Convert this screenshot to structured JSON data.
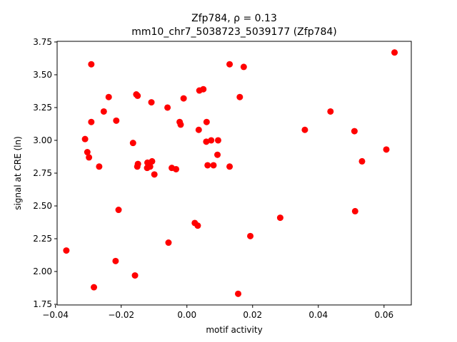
{
  "chart_data": {
    "type": "scatter",
    "title_line1": "Zfp784, ρ = 0.13",
    "title_line2": "mm10_chr7_5038723_5039177 (Zfp784)",
    "xlabel": "motif activity",
    "ylabel": "signal at CRE (ln)",
    "xlim": [
      -0.0395,
      0.0683
    ],
    "ylim": [
      1.745,
      3.755
    ],
    "xticks": [
      -0.04,
      -0.02,
      0.0,
      0.02,
      0.04,
      0.06
    ],
    "xtick_labels": [
      "−0.04",
      "−0.02",
      "0.00",
      "0.02",
      "0.04",
      "0.06"
    ],
    "yticks": [
      1.75,
      2.0,
      2.25,
      2.5,
      2.75,
      3.0,
      3.25,
      3.5,
      3.75
    ],
    "ytick_labels": [
      "1.75",
      "2.00",
      "2.25",
      "2.50",
      "2.75",
      "3.00",
      "3.25",
      "3.50",
      "3.75"
    ],
    "marker_color": "#ff0000",
    "grid": false,
    "points": [
      {
        "x": -0.0367,
        "y": 2.16
      },
      {
        "x": -0.031,
        "y": 3.01
      },
      {
        "x": -0.0303,
        "y": 2.91
      },
      {
        "x": -0.0298,
        "y": 2.87
      },
      {
        "x": -0.0291,
        "y": 3.58
      },
      {
        "x": -0.0291,
        "y": 3.14
      },
      {
        "x": -0.0283,
        "y": 1.88
      },
      {
        "x": -0.0267,
        "y": 2.8
      },
      {
        "x": -0.0253,
        "y": 3.22
      },
      {
        "x": -0.0238,
        "y": 3.33
      },
      {
        "x": -0.0217,
        "y": 2.08
      },
      {
        "x": -0.0215,
        "y": 3.15
      },
      {
        "x": -0.0208,
        "y": 2.47
      },
      {
        "x": -0.0164,
        "y": 2.98
      },
      {
        "x": -0.0158,
        "y": 1.97
      },
      {
        "x": -0.0154,
        "y": 3.35
      },
      {
        "x": -0.0151,
        "y": 2.8
      },
      {
        "x": -0.015,
        "y": 3.34
      },
      {
        "x": -0.0149,
        "y": 2.82
      },
      {
        "x": -0.0121,
        "y": 2.79
      },
      {
        "x": -0.012,
        "y": 2.83
      },
      {
        "x": -0.0117,
        "y": 2.82
      },
      {
        "x": -0.0112,
        "y": 2.8
      },
      {
        "x": -0.0108,
        "y": 3.29
      },
      {
        "x": -0.0106,
        "y": 2.84
      },
      {
        "x": -0.0099,
        "y": 2.74
      },
      {
        "x": -0.0059,
        "y": 3.25
      },
      {
        "x": -0.0056,
        "y": 2.22
      },
      {
        "x": -0.0046,
        "y": 2.79
      },
      {
        "x": -0.0033,
        "y": 2.78
      },
      {
        "x": -0.0022,
        "y": 3.14
      },
      {
        "x": -0.0019,
        "y": 3.12
      },
      {
        "x": -0.001,
        "y": 3.32
      },
      {
        "x": 0.0024,
        "y": 2.37
      },
      {
        "x": 0.0033,
        "y": 2.35
      },
      {
        "x": 0.0036,
        "y": 3.08
      },
      {
        "x": 0.0038,
        "y": 3.38
      },
      {
        "x": 0.005,
        "y": 3.39
      },
      {
        "x": 0.0059,
        "y": 2.99
      },
      {
        "x": 0.006,
        "y": 3.14
      },
      {
        "x": 0.0063,
        "y": 2.81
      },
      {
        "x": 0.0074,
        "y": 3.0
      },
      {
        "x": 0.0081,
        "y": 2.81
      },
      {
        "x": 0.0093,
        "y": 2.89
      },
      {
        "x": 0.0095,
        "y": 3.0
      },
      {
        "x": 0.013,
        "y": 3.58
      },
      {
        "x": 0.013,
        "y": 2.8
      },
      {
        "x": 0.0156,
        "y": 1.83
      },
      {
        "x": 0.0161,
        "y": 3.33
      },
      {
        "x": 0.0173,
        "y": 3.56
      },
      {
        "x": 0.0193,
        "y": 2.27
      },
      {
        "x": 0.0284,
        "y": 2.41
      },
      {
        "x": 0.0359,
        "y": 3.08
      },
      {
        "x": 0.0437,
        "y": 3.22
      },
      {
        "x": 0.051,
        "y": 3.07
      },
      {
        "x": 0.0512,
        "y": 2.46
      },
      {
        "x": 0.0533,
        "y": 2.84
      },
      {
        "x": 0.0607,
        "y": 2.93
      },
      {
        "x": 0.0632,
        "y": 3.67
      }
    ]
  }
}
